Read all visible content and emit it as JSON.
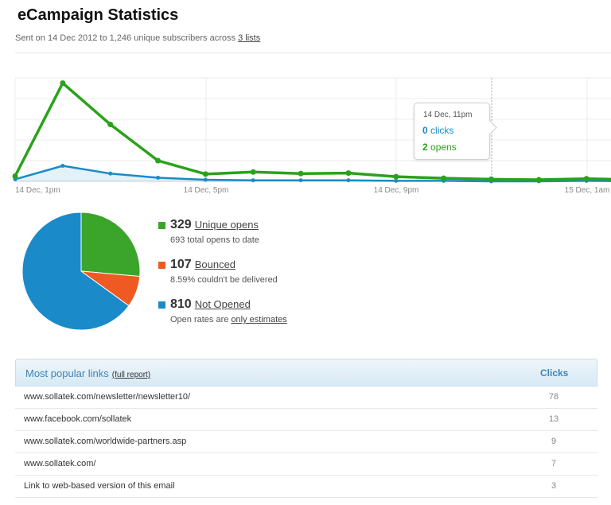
{
  "page": {
    "title": "eCampaign Statistics",
    "subtitle_prefix": "Sent on 14 Dec 2012 to 1,246 unique subscribers across ",
    "lists_link": "3 lists"
  },
  "chart_data": {
    "type": "line",
    "x_tick_labels": [
      "14 Dec, 1pm",
      "14 Dec, 5pm",
      "14 Dec, 9pm",
      "15 Dec, 1am"
    ],
    "series": [
      {
        "name": "opens",
        "color": "#2aa21a",
        "values": [
          1,
          19,
          11,
          4,
          1.4,
          1.8,
          1.5,
          1.6,
          0.9,
          0.6,
          0.4,
          0.3,
          0.5,
          0.3
        ]
      },
      {
        "name": "clicks",
        "color": "#1a8bc8",
        "values": [
          0.4,
          3,
          1.5,
          0.7,
          0.3,
          0.2,
          0.2,
          0.2,
          0.1,
          0.1,
          0,
          0,
          0.1,
          0
        ]
      }
    ],
    "ylim": [
      0,
      20
    ],
    "grid": true,
    "tooltip": {
      "date": "14 Dec, 11pm",
      "clicks_value": "0",
      "clicks_label": "clicks",
      "opens_value": "2",
      "opens_label": "opens"
    }
  },
  "pie": {
    "type": "pie",
    "slices": [
      {
        "label": "Unique opens",
        "value": 329,
        "color": "#3aa52a"
      },
      {
        "label": "Bounced",
        "value": 107,
        "color": "#ee5a22"
      },
      {
        "label": "Not Opened",
        "value": 810,
        "color": "#1a8bc8"
      }
    ]
  },
  "legend": [
    {
      "value": "329",
      "label": "Unique opens",
      "sub": "693 total opens to date",
      "color": "#3aa52a"
    },
    {
      "value": "107",
      "label": "Bounced",
      "sub": "8.59% couldn't be delivered",
      "color": "#ee5a22"
    },
    {
      "value": "810",
      "label": "Not Opened",
      "sub_prefix": "Open rates are ",
      "sub_link": "only estimates",
      "color": "#1a8bc8"
    }
  ],
  "links": {
    "title": "Most popular links",
    "full_report": "(full report)",
    "clicks_header": "Clicks",
    "rows": [
      {
        "url": "www.sollatek.com/newsletter/newsletter10/",
        "clicks": "78"
      },
      {
        "url": "www.facebook.com/sollatek",
        "clicks": "13"
      },
      {
        "url": "www.sollatek.com/worldwide-partners.asp",
        "clicks": "9"
      },
      {
        "url": "www.sollatek.com/",
        "clicks": "7"
      },
      {
        "url": "Link to web-based version of this email",
        "clicks": "3"
      }
    ]
  }
}
